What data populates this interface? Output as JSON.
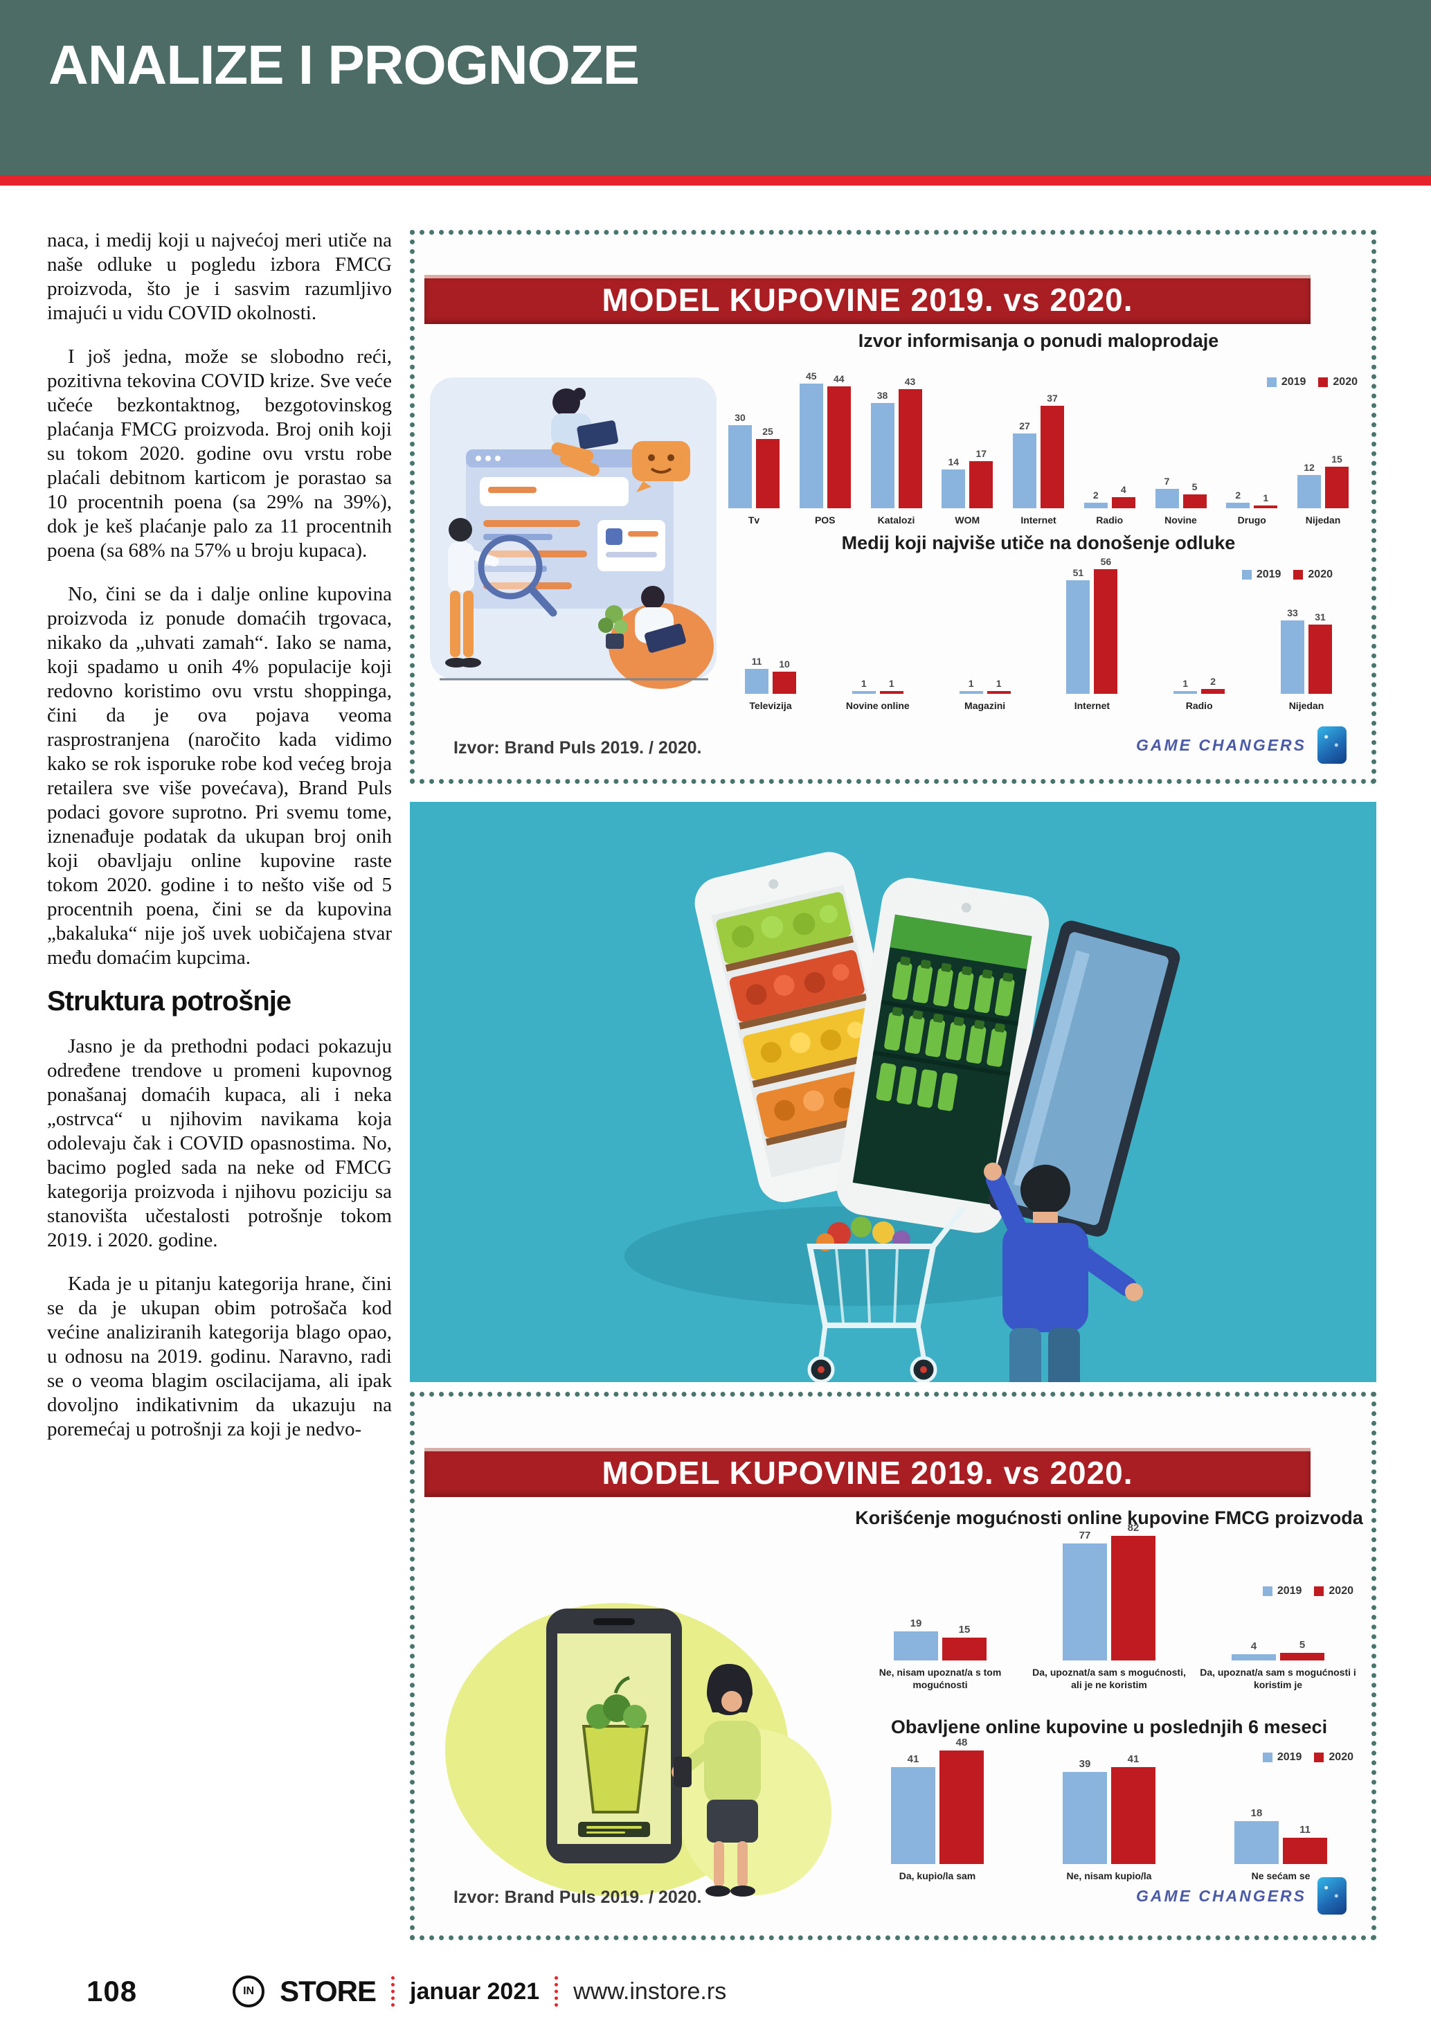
{
  "header": {
    "title": "ANALIZE I PROGNOZE"
  },
  "colors": {
    "header_bg": "#4d6c66",
    "stripe_red": "#e6242b",
    "banner_red": "#a81e22",
    "bar_2019_blue": "#8ab4de",
    "bar_2020_red": "#bf1b20",
    "hero_teal": "#3db0c6",
    "dotted_border": "#49756f",
    "agency_blue": "#4b5aa7"
  },
  "article": {
    "paragraphs_top": [
      "naca, i medij koji u najvećoj meri utiče na naše odluke u pogledu izbora FMCG proizvoda, što je i sasvim razumljivo imajući u vidu COVID okolnosti.",
      "I još jedna, može se slobodno reći, pozitivna tekovina COVID krize. Sve veće učeće bezkontaktnog, bezgotovinskog plaćanja FMCG proizvoda. Broj onih koji su tokom 2020. godine ovu vrstu robe plaćali debitnom karticom je porastao sa 10 procentnih poena (sa 29% na 39%), dok je keš plaćanje palo za 11 procentnih poena (sa 68% na 57% u broju kupaca).",
      "No, čini se da i dalje online kupovina proizvoda iz ponude domaćih trgovaca, nikako da „uhvati zamah“. Iako se nama, koji spadamo u onih 4% populacije koji redovno koristimo ovu vrstu shoppinga, čini da je ova pojava veoma rasprostranjena (naročito kada vidimo kako se rok isporuke robe kod većeg broja retailera sve više povećava), Brand Puls podaci govore suprotno. Pri svemu tome, iznenađuje podatak da ukupan broj onih koji obavljaju online kupovine raste tokom 2020. godine i to nešto više od 5 procentnih poena, čini se da kupovina „bakaluka“ nije još uvek uobičajena stvar među domaćim kupcima."
    ],
    "subheading": "Struktura potrošnje",
    "paragraphs_bottom": [
      "Jasno je da prethodni podaci pokazuju određene trendove u promeni kupovnog ponašanaj domaćih kupaca, ali i neka „ostrvca“ u njihovim navikama koja odolevaju čak i COVID opasnostima. No, bacimo pogled sada na neke od FMCG kategorija proizvoda i njihovu poziciju sa stanovišta učestalosti potrošnje tokom 2019. i 2020. godine.",
      "Kada je u pitanju kategorija hrane, čini se da je ukupan obim potrošača kod većine analiziranih kategorija blago opao, u odnosu na 2019. godinu. Naravno, radi se o veoma blagim oscilacijama, ali ipak dovoljno indikativnim da ukazuju na poremećaj u potrošnji za koji je nedvo-"
    ]
  },
  "infographic1": {
    "banner": "MODEL KUPOVINE 2019. vs 2020.",
    "source": "Izvor: Brand Puls 2019. / 2020.",
    "agency": "GAME CHANGERS"
  },
  "infographic2": {
    "banner": "MODEL KUPOVINE 2019. vs 2020.",
    "source": "Izvor: Brand Puls 2019. / 2020.",
    "agency": "GAME CHANGERS"
  },
  "footer": {
    "page_number": "108",
    "logo_mark": "IN",
    "brand": "STORE",
    "issue": "januar 2021",
    "website": "www.instore.rs"
  },
  "chart_data": [
    {
      "type": "bar",
      "title": "Izvor informisanja o ponudi maloprodaje",
      "categories": [
        "Tv",
        "POS",
        "Katalozi",
        "WOM",
        "Internet",
        "Radio",
        "Novine",
        "Drugo",
        "Nijedan"
      ],
      "series": [
        {
          "name": "2019",
          "color": "#8ab4de",
          "values": [
            30,
            45,
            38,
            14,
            27,
            2,
            7,
            2,
            12
          ]
        },
        {
          "name": "2020",
          "color": "#bf1b20",
          "values": [
            25,
            44,
            43,
            17,
            37,
            4,
            5,
            1,
            15
          ]
        }
      ],
      "ylim": [
        0,
        50
      ],
      "legend_position": "top-right",
      "grid": false
    },
    {
      "type": "bar",
      "title": "Medij koji najviše utiče na donošenje odluke",
      "categories": [
        "Televizija",
        "Novine online",
        "Magazini",
        "Internet",
        "Radio",
        "Nijedan"
      ],
      "series": [
        {
          "name": "2019",
          "color": "#8ab4de",
          "values": [
            11,
            1,
            1,
            51,
            1,
            33
          ]
        },
        {
          "name": "2020",
          "color": "#bf1b20",
          "values": [
            10,
            1,
            1,
            56,
            2,
            31
          ]
        }
      ],
      "ylim": [
        0,
        60
      ],
      "legend_position": "top-right",
      "grid": false
    },
    {
      "type": "bar",
      "title": "Korišćenje mogućnosti online kupovine FMCG proizvoda",
      "categories": [
        "Ne, nisam upoznat/a s tom mogućnosti",
        "Da, upoznat/a sam s mogućnosti, ali je ne koristim",
        "Da, upoznat/a sam s mogućnosti i koristim je"
      ],
      "series": [
        {
          "name": "2019",
          "color": "#8ab4de",
          "values": [
            19,
            77,
            4
          ]
        },
        {
          "name": "2020",
          "color": "#bf1b20",
          "values": [
            15,
            82,
            5
          ]
        }
      ],
      "ylim": [
        0,
        90
      ],
      "legend_position": "top-right",
      "grid": false
    },
    {
      "type": "bar",
      "title": "Obavljene online kupovine u poslednjih 6 meseci",
      "categories": [
        "Da, kupio/la sam",
        "Ne, nisam kupio/la",
        "Ne sećam se"
      ],
      "series": [
        {
          "name": "2019",
          "color": "#8ab4de",
          "values": [
            41,
            39,
            18
          ]
        },
        {
          "name": "2020",
          "color": "#bf1b20",
          "values": [
            48,
            41,
            11
          ]
        }
      ],
      "ylim": [
        0,
        55
      ],
      "legend_position": "top-right",
      "grid": false
    }
  ]
}
